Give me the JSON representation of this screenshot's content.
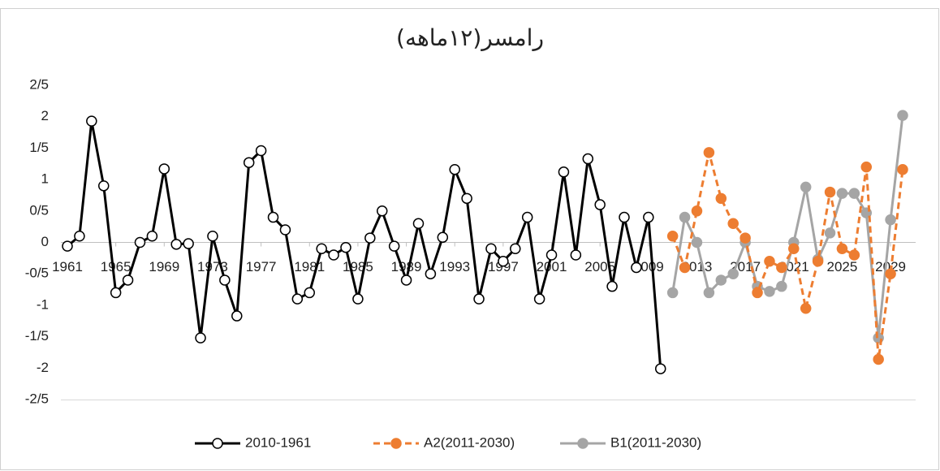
{
  "chart_data": {
    "type": "line",
    "title": "رامسر(۱۲ماهه)",
    "x": [
      1961,
      1962,
      1963,
      1964,
      1965,
      1966,
      1967,
      1968,
      1969,
      1970,
      1971,
      1972,
      1973,
      1974,
      1975,
      1976,
      1977,
      1978,
      1979,
      1980,
      1981,
      1982,
      1983,
      1984,
      1985,
      1986,
      1987,
      1988,
      1989,
      1990,
      1991,
      1992,
      1993,
      1994,
      1995,
      1996,
      1997,
      1998,
      1999,
      2000,
      2001,
      2002,
      2003,
      2004,
      2005,
      2006,
      2007,
      2008,
      2009,
      2010,
      2011,
      2012,
      2013,
      2014,
      2015,
      2016,
      2017,
      2018,
      2019,
      2020,
      2021,
      2022,
      2023,
      2024,
      2025,
      2026,
      2027,
      2028,
      2029,
      2030
    ],
    "xlim": [
      1961,
      2030
    ],
    "xticks": [
      1961,
      1965,
      1969,
      1973,
      1977,
      1981,
      1985,
      1989,
      1993,
      1997,
      2001,
      2005,
      2009,
      2013,
      2017,
      2021,
      2025,
      2029
    ],
    "ylim": [
      -2.5,
      2.5
    ],
    "yticks": [
      {
        "value": 2.5,
        "label": "2/5"
      },
      2,
      {
        "value": 1.5,
        "label": "1/5"
      },
      1,
      {
        "value": 0.5,
        "label": "0/5"
      },
      0,
      {
        "value": -0.5,
        "label": "-0/5"
      },
      -1,
      {
        "value": -1.5,
        "label": "-1/5"
      },
      -2,
      {
        "value": -2.5,
        "label": "-2/5"
      }
    ],
    "grid": false,
    "legend": "bottom",
    "series": [
      {
        "name": "2010-1961",
        "color": "#000000",
        "marker_fill": "#ffffff",
        "dash": false,
        "values": [
          -0.06,
          0.1,
          1.93,
          0.9,
          -0.8,
          -0.6,
          0,
          0.1,
          1.17,
          -0.03,
          -0.02,
          -1.52,
          0.1,
          -0.6,
          -1.17,
          1.27,
          1.46,
          0.4,
          0.2,
          -0.9,
          -0.8,
          -0.1,
          -0.2,
          -0.08,
          -0.9,
          0.07,
          0.5,
          -0.06,
          -0.6,
          0.3,
          -0.5,
          0.08,
          1.16,
          0.7,
          -0.9,
          -0.1,
          -0.3,
          -0.1,
          0.4,
          -0.9,
          -0.2,
          1.12,
          -0.2,
          1.33,
          0.6,
          -0.7,
          0.4,
          -0.4,
          0.4,
          -2.01,
          null,
          null,
          null,
          null,
          null,
          null,
          null,
          null,
          null,
          null,
          null,
          null,
          null,
          null,
          null,
          null,
          null,
          null,
          null,
          null
        ]
      },
      {
        "name": "A2(2011-2030)",
        "color": "#ed7d31",
        "marker_fill": "#ed7d31",
        "dash": true,
        "values": [
          null,
          null,
          null,
          null,
          null,
          null,
          null,
          null,
          null,
          null,
          null,
          null,
          null,
          null,
          null,
          null,
          null,
          null,
          null,
          null,
          null,
          null,
          null,
          null,
          null,
          null,
          null,
          null,
          null,
          null,
          null,
          null,
          null,
          null,
          null,
          null,
          null,
          null,
          null,
          null,
          null,
          null,
          null,
          null,
          null,
          null,
          null,
          null,
          null,
          null,
          0.1,
          -0.4,
          0.5,
          1.43,
          0.7,
          0.3,
          0.07,
          -0.8,
          -0.3,
          -0.4,
          -0.1,
          -1.05,
          -0.3,
          0.8,
          -0.1,
          -0.2,
          1.2,
          -1.86,
          -0.5,
          1.16
        ]
      },
      {
        "name": "B1(2011-2030)",
        "color": "#a5a5a5",
        "marker_fill": "#a5a5a5",
        "dash": false,
        "values": [
          null,
          null,
          null,
          null,
          null,
          null,
          null,
          null,
          null,
          null,
          null,
          null,
          null,
          null,
          null,
          null,
          null,
          null,
          null,
          null,
          null,
          null,
          null,
          null,
          null,
          null,
          null,
          null,
          null,
          null,
          null,
          null,
          null,
          null,
          null,
          null,
          null,
          null,
          null,
          null,
          null,
          null,
          null,
          null,
          null,
          null,
          null,
          null,
          null,
          null,
          -0.8,
          0.4,
          0,
          -0.8,
          -0.6,
          -0.5,
          0,
          -0.7,
          -0.78,
          -0.7,
          0,
          0.88,
          -0.27,
          0.15,
          0.78,
          0.78,
          0.47,
          -1.52,
          0.36,
          2.02
        ]
      }
    ]
  }
}
